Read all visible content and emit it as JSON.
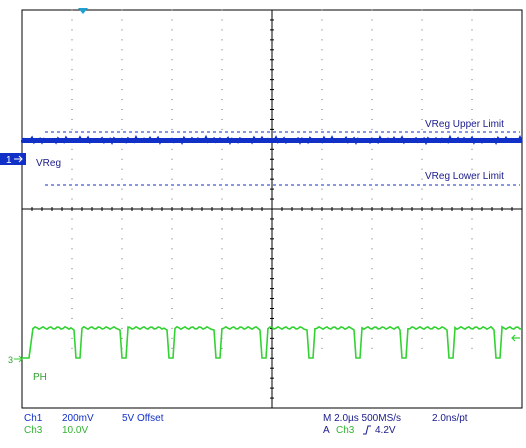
{
  "colors": {
    "ch1": "#1030c8",
    "ch3": "#32d232",
    "grid": "#000000",
    "trigger": "#1ea0d2",
    "text": "#1a1a8c"
  },
  "channels": {
    "ch1": {
      "marker": "1",
      "label": "VReg",
      "scale_label": "Ch1",
      "scale_value": "200mV",
      "offset": "5V Offset",
      "upper_limit_label": "VReg Upper Limit",
      "lower_limit_label": "VReg Lower Limit"
    },
    "ch3": {
      "marker": "3",
      "label": "PH",
      "scale_label": "Ch3",
      "scale_value": "10.0V"
    }
  },
  "timebase": {
    "text": "M 2.0µs 500MS/s",
    "resolution": "2.0ns/pt"
  },
  "trigger": {
    "mode": "A",
    "source": "Ch3",
    "slope_icon": "rising-edge-icon",
    "level": "4.2V"
  }
}
